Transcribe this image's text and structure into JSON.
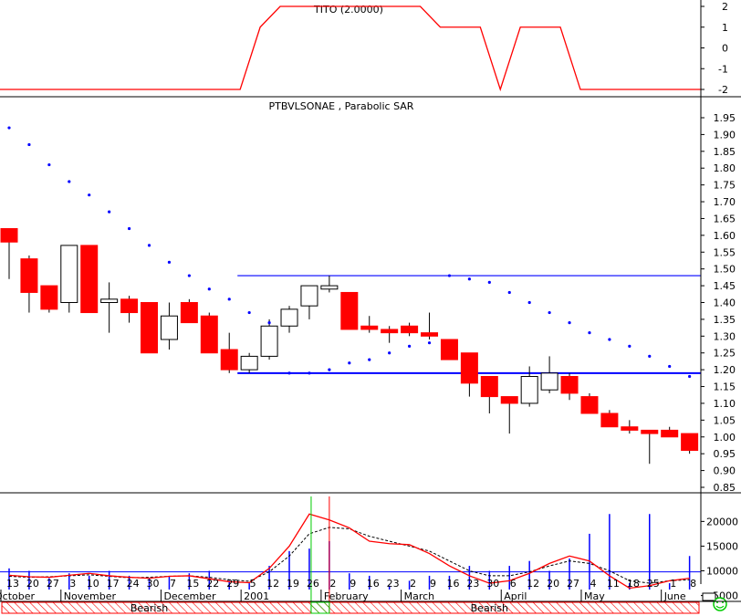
{
  "colors": {
    "background": "#ffffff",
    "bearish_candle": "#ff0000",
    "bullish_candle": "#ffffff",
    "sar_dots": "#0000ff",
    "trend_lines": "#0000ff",
    "tito_line": "#ff0000",
    "volume_bars": "#0000ff",
    "volume_ma": "#ff0000",
    "volume_ma_dashed": "#000000",
    "bearish_band": "#ff0000",
    "smiley": "#00cc00"
  },
  "icons": {
    "status": "smiley-icon"
  },
  "chart_data": [
    {
      "type": "line",
      "title": "TITO (2.0000)",
      "x": [
        0,
        1,
        2,
        3,
        4,
        5,
        6,
        7,
        8,
        9,
        10,
        11,
        12,
        13,
        14,
        15,
        16,
        17,
        18,
        19,
        20,
        21,
        22,
        23,
        24,
        25,
        26,
        27,
        28,
        29,
        30,
        31,
        32,
        33,
        34
      ],
      "values": [
        -2,
        -2,
        -2,
        -2,
        -2,
        -2,
        -2,
        -2,
        -2,
        -2,
        -2,
        -2,
        -2,
        1,
        2,
        2,
        2,
        2,
        2,
        2,
        2,
        2,
        1,
        1,
        1,
        -2,
        1,
        1,
        1,
        -2,
        -2,
        -2,
        -2,
        -2,
        -2
      ],
      "yticks": [
        "2",
        "1",
        "0",
        "-1",
        "-2"
      ],
      "ylim": [
        -2.2,
        2.3
      ]
    },
    {
      "type": "candlestick",
      "title": "PTBVLSONAE , Parabolic SAR",
      "ylim": [
        0.84,
        1.985
      ],
      "yticks": [
        "1.95",
        "1.90",
        "1.85",
        "1.80",
        "1.75",
        "1.70",
        "1.65",
        "1.60",
        "1.55",
        "1.50",
        "1.45",
        "1.40",
        "1.35",
        "1.30",
        "1.25",
        "1.20",
        "1.15",
        "1.10",
        "1.05",
        "1.00",
        "0.95",
        "0.90",
        "0.85"
      ],
      "candles": [
        {
          "o": 1.62,
          "h": 1.62,
          "l": 1.47,
          "c": 1.58
        },
        {
          "o": 1.53,
          "h": 1.54,
          "l": 1.37,
          "c": 1.43
        },
        {
          "o": 1.45,
          "h": 1.45,
          "l": 1.37,
          "c": 1.38
        },
        {
          "o": 1.4,
          "h": 1.57,
          "l": 1.37,
          "c": 1.57
        },
        {
          "o": 1.57,
          "h": 1.57,
          "l": 1.37,
          "c": 1.37
        },
        {
          "o": 1.4,
          "h": 1.46,
          "l": 1.31,
          "c": 1.41
        },
        {
          "o": 1.41,
          "h": 1.42,
          "l": 1.34,
          "c": 1.37
        },
        {
          "o": 1.4,
          "h": 1.4,
          "l": 1.25,
          "c": 1.25
        },
        {
          "o": 1.29,
          "h": 1.4,
          "l": 1.26,
          "c": 1.36
        },
        {
          "o": 1.4,
          "h": 1.41,
          "l": 1.34,
          "c": 1.34
        },
        {
          "o": 1.36,
          "h": 1.37,
          "l": 1.25,
          "c": 1.25
        },
        {
          "o": 1.26,
          "h": 1.31,
          "l": 1.19,
          "c": 1.2
        },
        {
          "o": 1.2,
          "h": 1.25,
          "l": 1.19,
          "c": 1.24
        },
        {
          "o": 1.24,
          "h": 1.35,
          "l": 1.23,
          "c": 1.33
        },
        {
          "o": 1.33,
          "h": 1.39,
          "l": 1.31,
          "c": 1.38
        },
        {
          "o": 1.39,
          "h": 1.45,
          "l": 1.35,
          "c": 1.45
        },
        {
          "o": 1.44,
          "h": 1.48,
          "l": 1.43,
          "c": 1.45
        },
        {
          "o": 1.43,
          "h": 1.43,
          "l": 1.32,
          "c": 1.32
        },
        {
          "o": 1.33,
          "h": 1.36,
          "l": 1.31,
          "c": 1.32
        },
        {
          "o": 1.32,
          "h": 1.33,
          "l": 1.28,
          "c": 1.31
        },
        {
          "o": 1.33,
          "h": 1.34,
          "l": 1.3,
          "c": 1.31
        },
        {
          "o": 1.31,
          "h": 1.37,
          "l": 1.29,
          "c": 1.3
        },
        {
          "o": 1.29,
          "h": 1.29,
          "l": 1.23,
          "c": 1.23
        },
        {
          "o": 1.25,
          "h": 1.25,
          "l": 1.12,
          "c": 1.16
        },
        {
          "o": 1.18,
          "h": 1.18,
          "l": 1.07,
          "c": 1.12
        },
        {
          "o": 1.12,
          "h": 1.12,
          "l": 1.01,
          "c": 1.1
        },
        {
          "o": 1.1,
          "h": 1.21,
          "l": 1.09,
          "c": 1.18
        },
        {
          "o": 1.14,
          "h": 1.24,
          "l": 1.13,
          "c": 1.19
        },
        {
          "o": 1.18,
          "h": 1.19,
          "l": 1.11,
          "c": 1.13
        },
        {
          "o": 1.12,
          "h": 1.13,
          "l": 1.07,
          "c": 1.07
        },
        {
          "o": 1.07,
          "h": 1.08,
          "l": 1.03,
          "c": 1.03
        },
        {
          "o": 1.03,
          "h": 1.05,
          "l": 1.01,
          "c": 1.02
        },
        {
          "o": 1.02,
          "h": 1.02,
          "l": 0.92,
          "c": 1.01
        },
        {
          "o": 1.02,
          "h": 1.03,
          "l": 1.0,
          "c": 1.0
        },
        {
          "o": 1.01,
          "h": 1.01,
          "l": 0.95,
          "c": 0.96
        }
      ],
      "sar": [
        {
          "i": 0,
          "v": 1.92
        },
        {
          "i": 1,
          "v": 1.87
        },
        {
          "i": 2,
          "v": 1.81
        },
        {
          "i": 3,
          "v": 1.76
        },
        {
          "i": 4,
          "v": 1.72
        },
        {
          "i": 5,
          "v": 1.67
        },
        {
          "i": 6,
          "v": 1.62
        },
        {
          "i": 7,
          "v": 1.57
        },
        {
          "i": 8,
          "v": 1.52
        },
        {
          "i": 9,
          "v": 1.48
        },
        {
          "i": 10,
          "v": 1.44
        },
        {
          "i": 11,
          "v": 1.41
        },
        {
          "i": 12,
          "v": 1.37
        },
        {
          "i": 13,
          "v": 1.34
        },
        {
          "i": 14,
          "v": 1.19
        },
        {
          "i": 15,
          "v": 1.19
        },
        {
          "i": 16,
          "v": 1.2
        },
        {
          "i": 17,
          "v": 1.22
        },
        {
          "i": 18,
          "v": 1.23
        },
        {
          "i": 19,
          "v": 1.25
        },
        {
          "i": 20,
          "v": 1.27
        },
        {
          "i": 21,
          "v": 1.28
        },
        {
          "i": 22,
          "v": 1.48
        },
        {
          "i": 23,
          "v": 1.47
        },
        {
          "i": 24,
          "v": 1.46
        },
        {
          "i": 25,
          "v": 1.43
        },
        {
          "i": 26,
          "v": 1.4
        },
        {
          "i": 27,
          "v": 1.37
        },
        {
          "i": 28,
          "v": 1.34
        },
        {
          "i": 29,
          "v": 1.31
        },
        {
          "i": 30,
          "v": 1.29
        },
        {
          "i": 31,
          "v": 1.27
        },
        {
          "i": 32,
          "v": 1.24
        },
        {
          "i": 33,
          "v": 1.21
        },
        {
          "i": 34,
          "v": 1.18
        }
      ],
      "hlines": [
        {
          "v": 1.48,
          "from": 11,
          "to": 34
        },
        {
          "v": 1.19,
          "from": 11,
          "to": 34
        }
      ]
    },
    {
      "type": "bar",
      "subtype": "volume",
      "ylim": [
        4000,
        24500
      ],
      "yticks": [
        "20000",
        "15000",
        "10000",
        "5000"
      ],
      "volumes": [
        {
          "i": 0,
          "v": 10500
        },
        {
          "i": 1,
          "v": 10000
        },
        {
          "i": 2,
          "v": 8500
        },
        {
          "i": 3,
          "v": 9500
        },
        {
          "i": 4,
          "v": 9000
        },
        {
          "i": 5,
          "v": 10000
        },
        {
          "i": 6,
          "v": 9000
        },
        {
          "i": 7,
          "v": 8500
        },
        {
          "i": 8,
          "v": 9000
        },
        {
          "i": 9,
          "v": 9500
        },
        {
          "i": 10,
          "v": 10000
        },
        {
          "i": 11,
          "v": 8000
        },
        {
          "i": 12,
          "v": 7500
        },
        {
          "i": 13,
          "v": 11000
        },
        {
          "i": 14,
          "v": 14000
        },
        {
          "i": 15,
          "v": 14500
        },
        {
          "i": 16,
          "v": 16000
        },
        {
          "i": 17,
          "v": 9500
        },
        {
          "i": 18,
          "v": 9000
        },
        {
          "i": 19,
          "v": 7000
        },
        {
          "i": 20,
          "v": 8000
        },
        {
          "i": 21,
          "v": 9000
        },
        {
          "i": 22,
          "v": 9000
        },
        {
          "i": 23,
          "v": 11000
        },
        {
          "i": 24,
          "v": 10000
        },
        {
          "i": 25,
          "v": 11000
        },
        {
          "i": 26,
          "v": 12000
        },
        {
          "i": 27,
          "v": 10000
        },
        {
          "i": 28,
          "v": 12500
        },
        {
          "i": 29,
          "v": 17500
        },
        {
          "i": 30,
          "v": 21500
        },
        {
          "i": 31,
          "v": 7500
        },
        {
          "i": 32,
          "v": 21500
        },
        {
          "i": 33,
          "v": 7500
        },
        {
          "i": 34,
          "v": 13000
        }
      ],
      "ma_red": [
        9100,
        8800,
        8700,
        9100,
        9500,
        9000,
        8700,
        8500,
        8900,
        9000,
        8400,
        7800,
        7600,
        10500,
        15000,
        21500,
        20300,
        18700,
        16000,
        15500,
        15300,
        13500,
        11000,
        9000,
        7500,
        8000,
        9500,
        11500,
        13000,
        12000,
        9000,
        6500,
        7000,
        8000,
        8500
      ],
      "ma_black": [
        8900,
        8700,
        8800,
        9000,
        9200,
        8900,
        8600,
        8700,
        8900,
        9000,
        8700,
        8200,
        7900,
        9800,
        13000,
        17500,
        18800,
        18500,
        17000,
        16000,
        15000,
        14000,
        12000,
        10000,
        9000,
        9000,
        9800,
        11000,
        12000,
        11500,
        10000,
        8000,
        7500,
        8000,
        8200
      ],
      "hline": 9800,
      "green_marker_index": 15,
      "red_marker_index": 16,
      "band_labels": [
        {
          "text": "Bearish",
          "i": 7
        },
        {
          "text": "Bearish",
          "i": 24
        }
      ]
    }
  ],
  "xaxis": {
    "ticks": [
      "13",
      "20",
      "27",
      "3",
      "10",
      "17",
      "24",
      "30",
      "7",
      "15",
      "22",
      "29",
      "5",
      "12",
      "19",
      "26",
      "2",
      "9",
      "16",
      "23",
      "2",
      "9",
      "16",
      "23",
      "30",
      "6",
      "12",
      "20",
      "27",
      "4",
      "11",
      "18",
      "25",
      "1",
      "8"
    ],
    "months": [
      "October",
      "November",
      "December",
      "2001",
      "February",
      "March",
      "April",
      "May",
      "June"
    ]
  }
}
